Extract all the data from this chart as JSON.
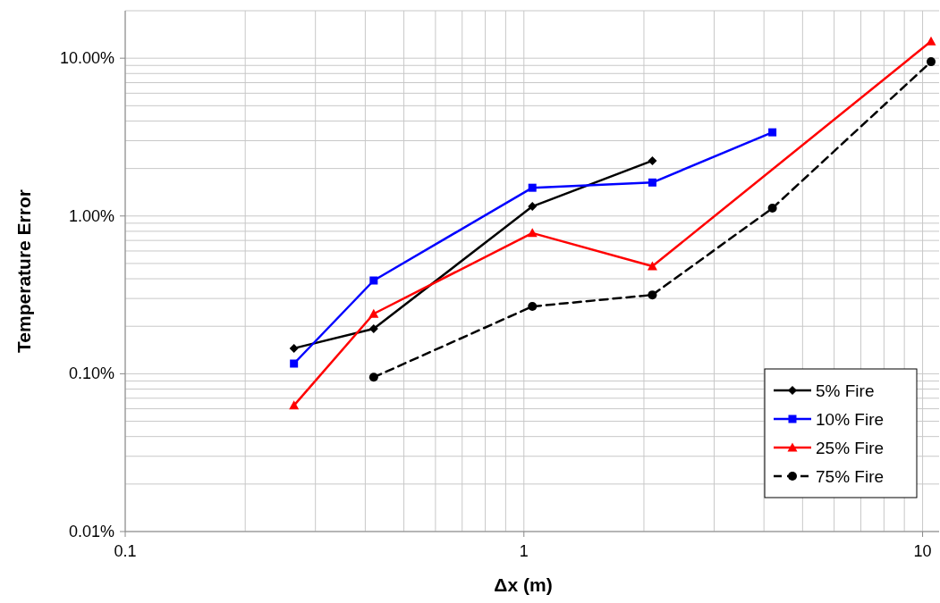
{
  "chart_data": {
    "type": "line",
    "xlabel": "Δx (m)",
    "ylabel": "Temperature Error",
    "log": "xy",
    "grid": true,
    "legend": "bottom right",
    "xlim": [
      0.1,
      11
    ],
    "ylim": [
      0.01,
      20
    ],
    "xticks": [
      {
        "value": 0.1,
        "label": "0.1"
      },
      {
        "value": 0.2,
        "label": null
      },
      {
        "value": 0.3,
        "label": null
      },
      {
        "value": 0.4,
        "label": null
      },
      {
        "value": 0.5,
        "label": null
      },
      {
        "value": 0.6,
        "label": null
      },
      {
        "value": 0.7,
        "label": null
      },
      {
        "value": 0.8,
        "label": null
      },
      {
        "value": 0.9,
        "label": null
      },
      {
        "value": 1,
        "label": "1"
      },
      {
        "value": 2,
        "label": null
      },
      {
        "value": 3,
        "label": null
      },
      {
        "value": 4,
        "label": null
      },
      {
        "value": 5,
        "label": null
      },
      {
        "value": 6,
        "label": null
      },
      {
        "value": 7,
        "label": null
      },
      {
        "value": 8,
        "label": null
      },
      {
        "value": 9,
        "label": null
      },
      {
        "value": 10,
        "label": "10"
      }
    ],
    "yticks": [
      {
        "value": 0.01,
        "label": "0.01%"
      },
      {
        "value": 0.02,
        "label": null
      },
      {
        "value": 0.03,
        "label": null
      },
      {
        "value": 0.04,
        "label": null
      },
      {
        "value": 0.05,
        "label": null
      },
      {
        "value": 0.06,
        "label": null
      },
      {
        "value": 0.07,
        "label": null
      },
      {
        "value": 0.08,
        "label": null
      },
      {
        "value": 0.09,
        "label": null
      },
      {
        "value": 0.1,
        "label": "0.10%"
      },
      {
        "value": 0.2,
        "label": null
      },
      {
        "value": 0.3,
        "label": null
      },
      {
        "value": 0.4,
        "label": null
      },
      {
        "value": 0.5,
        "label": null
      },
      {
        "value": 0.6,
        "label": null
      },
      {
        "value": 0.7,
        "label": null
      },
      {
        "value": 0.8,
        "label": null
      },
      {
        "value": 0.9,
        "label": null
      },
      {
        "value": 1,
        "label": "1.00%"
      },
      {
        "value": 2,
        "label": null
      },
      {
        "value": 3,
        "label": null
      },
      {
        "value": 4,
        "label": null
      },
      {
        "value": 5,
        "label": null
      },
      {
        "value": 6,
        "label": null
      },
      {
        "value": 7,
        "label": null
      },
      {
        "value": 8,
        "label": null
      },
      {
        "value": 9,
        "label": null
      },
      {
        "value": 10,
        "label": "10.00%"
      },
      {
        "value": 20,
        "label": null
      }
    ],
    "series": [
      {
        "name": "5% Fire",
        "color": "#000000",
        "marker": "diamond",
        "line_style": "solid",
        "x": [
          0.265,
          0.42,
          1.05,
          2.1
        ],
        "values": [
          0.145,
          0.193,
          1.15,
          2.24
        ]
      },
      {
        "name": "10% Fire",
        "color": "#0000ff",
        "marker": "square",
        "line_style": "solid",
        "x": [
          0.265,
          0.42,
          1.05,
          2.1,
          4.2
        ],
        "values": [
          0.116,
          0.39,
          1.51,
          1.63,
          3.39
        ]
      },
      {
        "name": "25% Fire",
        "color": "#ff0000",
        "marker": "triangle",
        "line_style": "solid",
        "x": [
          0.265,
          0.42,
          1.05,
          2.1,
          10.5
        ],
        "values": [
          0.063,
          0.24,
          0.78,
          0.48,
          12.8
        ]
      },
      {
        "name": "75% Fire",
        "color": "#000000",
        "marker": "circle",
        "line_style": "dashed",
        "x": [
          0.42,
          1.05,
          2.1,
          4.2,
          10.5
        ],
        "values": [
          0.095,
          0.267,
          0.316,
          1.12,
          9.5
        ]
      }
    ]
  }
}
